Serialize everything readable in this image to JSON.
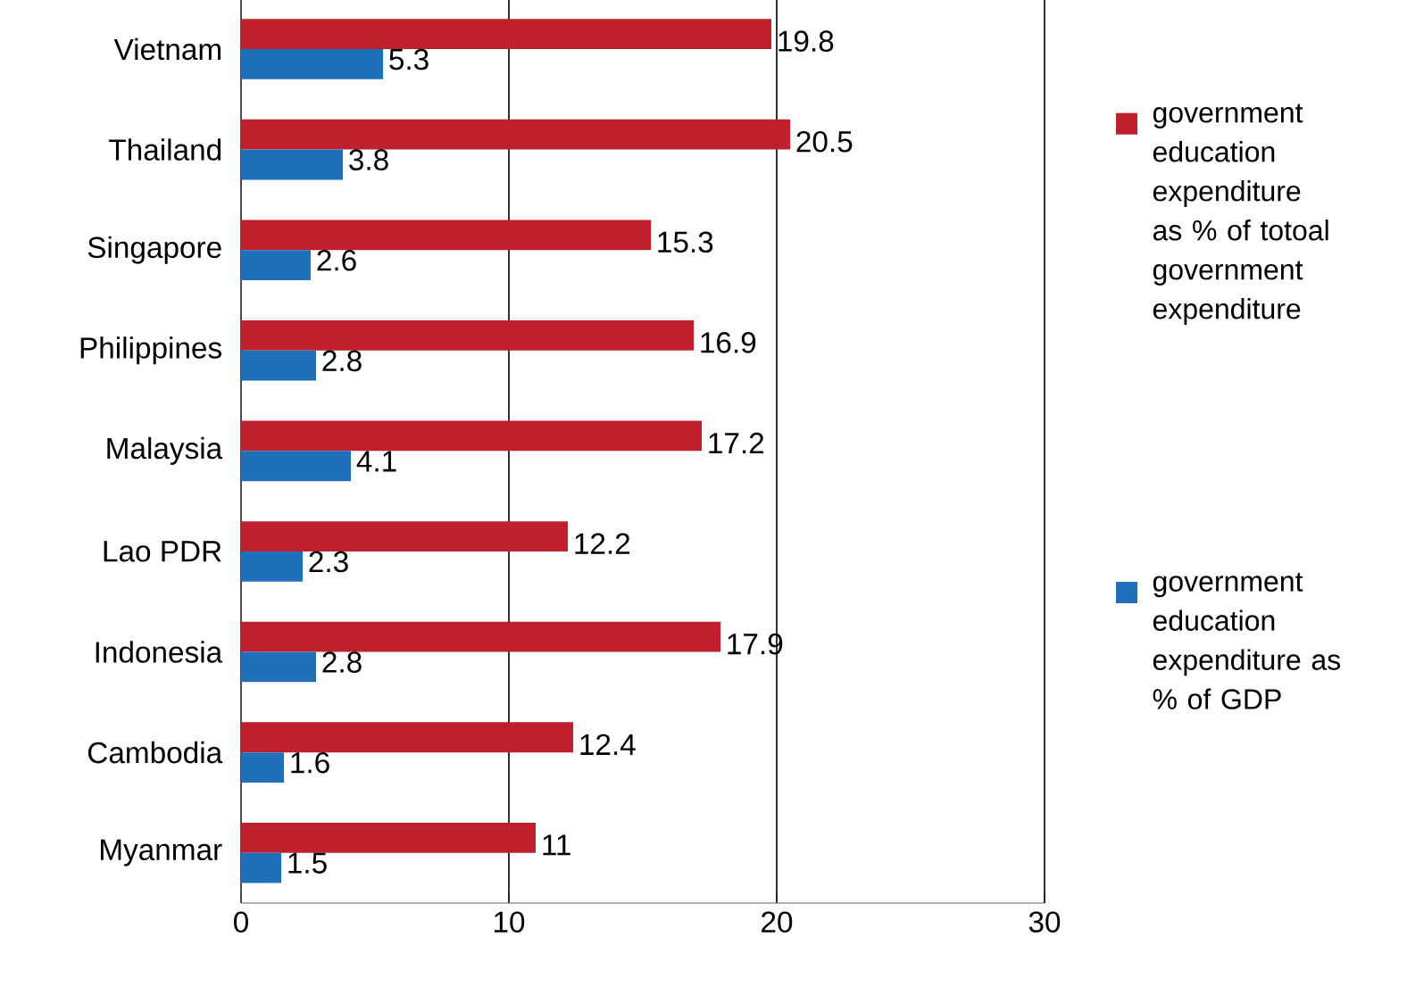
{
  "chart_data": {
    "type": "bar",
    "orientation": "horizontal",
    "categories": [
      "Vietnam",
      "Thailand",
      "Singapore",
      "Philippines",
      "Malaysia",
      "Lao PDR",
      "Indonesia",
      "Cambodia",
      "Myanmar"
    ],
    "series": [
      {
        "name": "government education expenditure as % of totoal government expenditure",
        "color": "#c0202e",
        "values": [
          19.8,
          20.5,
          15.3,
          16.9,
          17.2,
          12.2,
          17.9,
          12.4,
          11
        ]
      },
      {
        "name": "government education expenditure as % of GDP",
        "color": "#1f6fba",
        "values": [
          5.3,
          3.8,
          2.6,
          2.8,
          4.1,
          2.3,
          2.8,
          1.6,
          1.5
        ]
      }
    ],
    "xlim": [
      0,
      30
    ],
    "xticks": [
      0,
      10,
      20,
      30
    ],
    "grid": "x",
    "legend": "right",
    "data_labels": true
  }
}
